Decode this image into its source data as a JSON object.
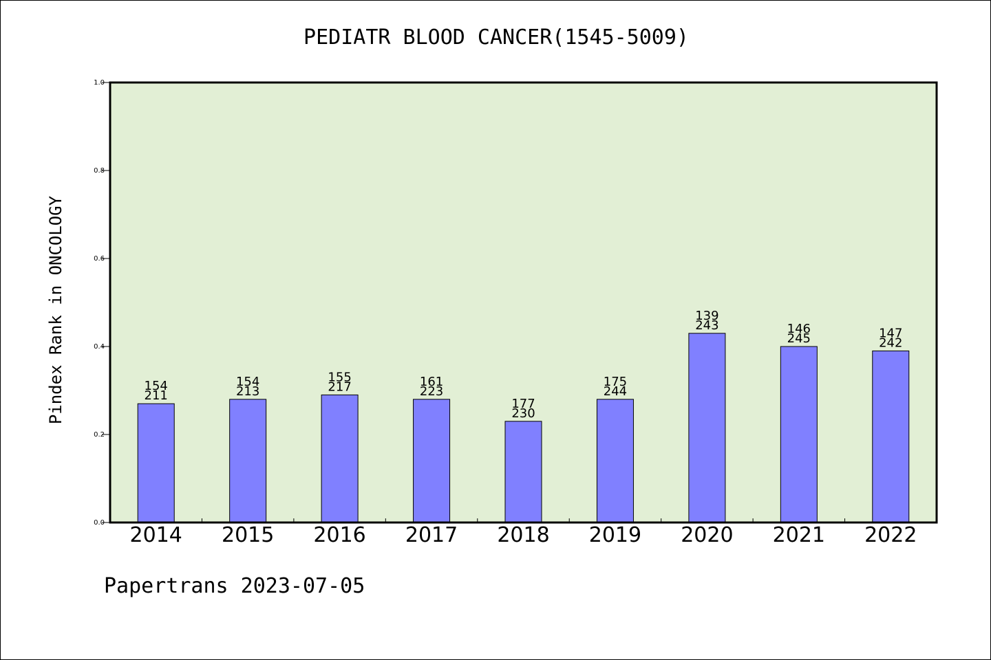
{
  "chart_data": {
    "type": "bar",
    "title": "PEDIATR BLOOD CANCER(1545-5009)",
    "ylabel": "Pindex Rank in ONCOLOGY",
    "xlabel": "",
    "ylim": [
      0.0,
      1.0
    ],
    "yticks": [
      "0.0",
      "0.2",
      "0.4",
      "0.6",
      "0.8",
      "1.0"
    ],
    "categories": [
      "2014",
      "2015",
      "2016",
      "2017",
      "2018",
      "2019",
      "2020",
      "2021",
      "2022"
    ],
    "values": [
      0.27,
      0.28,
      0.29,
      0.28,
      0.23,
      0.28,
      0.43,
      0.4,
      0.39
    ],
    "labels_top": [
      "154",
      "154",
      "155",
      "161",
      "177",
      "175",
      "139",
      "146",
      "147"
    ],
    "labels_bottom": [
      "211",
      "213",
      "217",
      "223",
      "230",
      "244",
      "243",
      "245",
      "242"
    ],
    "grid": false,
    "colors": {
      "plot_bg": "#e2efd5",
      "bar_fill": "#8080ff",
      "bar_stroke": "#000000"
    }
  },
  "footer": "Papertrans 2023-07-05"
}
